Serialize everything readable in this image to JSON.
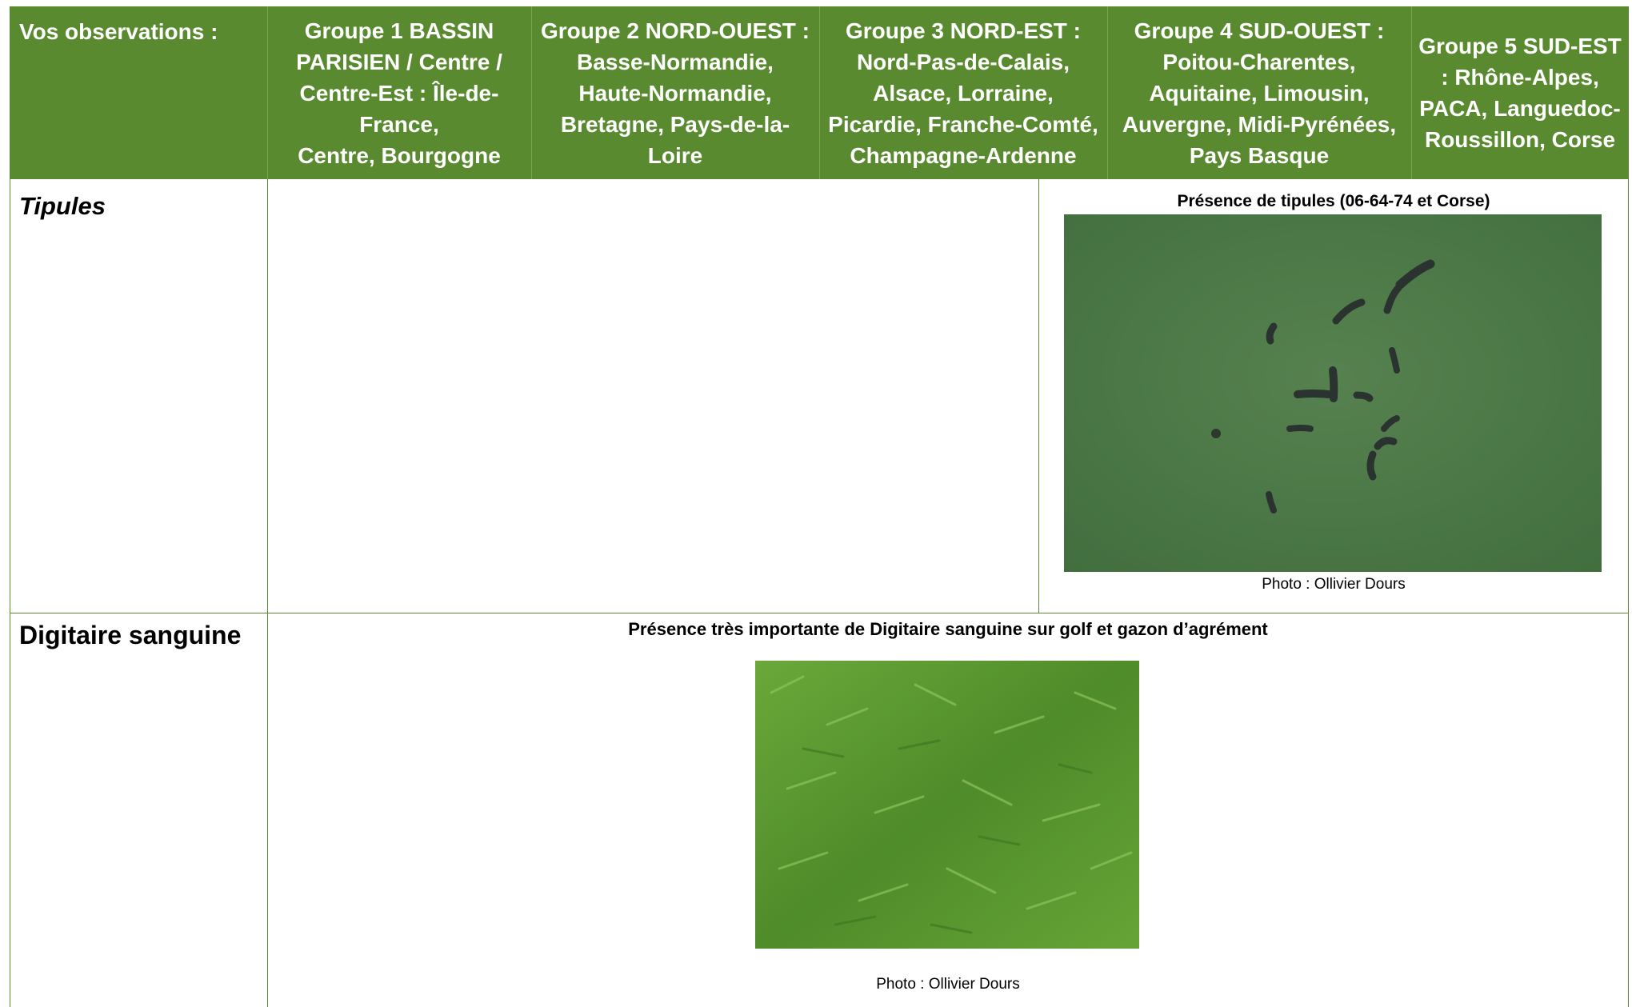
{
  "header": {
    "col0": "Vos observations :",
    "col1": "Groupe 1 BASSIN\nPARISIEN / Centre /\nCentre-Est : Île-de-\nFrance,\nCentre, Bourgogne",
    "col2": "Groupe 2 NORD-OUEST :\nBasse-Normandie,\nHaute-Normandie,\nBretagne, Pays-de-la-\nLoire",
    "col3": "Groupe 3 NORD-EST :\nNord-Pas-de-Calais,\nAlsace, Lorraine,\nPicardie, Franche-Comté,\nChampagne-Ardenne",
    "col4": "Groupe 4 SUD-OUEST :\nPoitou-Charentes,\nAquitaine, Limousin,\nAuvergne, Midi-Pyrénées,\nPays Basque",
    "col5": "Groupe 5 SUD-EST\n: Rhône-Alpes,\nPACA, Languedoc-\nRoussillon, Corse"
  },
  "rows": [
    {
      "label": "Tipules",
      "caption": "Présence de tipules (06-64-74 et Corse)",
      "photo_credit": "Photo : Ollivier Dours"
    },
    {
      "label": "Digitaire sanguine",
      "caption": "Présence très importante de Digitaire sanguine sur golf et gazon d’agrément",
      "photo_credit": "Photo : Ollivier Dours"
    }
  ],
  "colors": {
    "header_bg": "#5a8a2f",
    "header_text": "#ffffff",
    "border": "#5a8a2f"
  }
}
